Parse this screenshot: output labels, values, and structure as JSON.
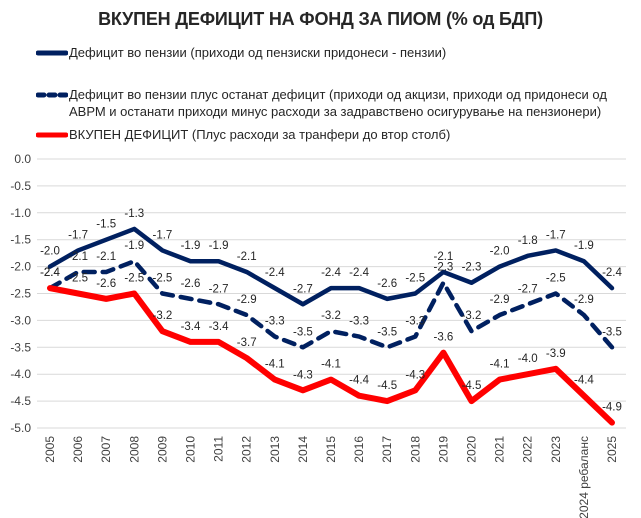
{
  "chart_data": {
    "type": "line",
    "title": "ВКУПЕН ДЕФИЦИТ НА ФОНД ЗА ПИОМ (% од БДП)",
    "xlabel": "",
    "ylabel": "",
    "ylim": [
      -5.0,
      0.0
    ],
    "yticks": [
      "0.0",
      "-0.5",
      "-1.0",
      "-1.5",
      "-2.0",
      "-2.5",
      "-3.0",
      "-3.5",
      "-4.0",
      "-4.5",
      "-5.0"
    ],
    "ytick_values": [
      0.0,
      -0.5,
      -1.0,
      -1.5,
      -2.0,
      -2.5,
      -3.0,
      -3.5,
      -4.0,
      -4.5,
      -5.0
    ],
    "grid": true,
    "legend_position": "top",
    "categories": [
      "2005",
      "2006",
      "2007",
      "2008",
      "2009",
      "2010",
      "2011",
      "2012",
      "2013",
      "2014",
      "2015",
      "2016",
      "2017",
      "2018",
      "2019",
      "2020",
      "2021",
      "2022",
      "2023",
      "2024 ребаланс",
      "2025"
    ],
    "series": [
      {
        "name": "Дефицит во пензии (приходи од пензиски придонеси -  пензии)",
        "color": "#002060",
        "style": "solid",
        "values": [
          -2.0,
          -1.7,
          -1.5,
          -1.3,
          -1.7,
          -1.9,
          -1.9,
          -2.1,
          -2.4,
          -2.7,
          -2.4,
          -2.4,
          -2.6,
          -2.5,
          -2.1,
          -2.3,
          -2.0,
          -1.8,
          -1.7,
          -1.9,
          -2.4
        ]
      },
      {
        "name": "Дефицит во пензии плус останат дефицит (приходи од акцизи, приходи од придонеси од АВРМ и останати приходи минус расходи за задравствено осигурување на пензионери)",
        "color": "#002060",
        "style": "dashed",
        "values": [
          -2.4,
          -2.1,
          -2.1,
          -1.9,
          -2.5,
          -2.6,
          -2.7,
          -2.9,
          -3.3,
          -3.5,
          -3.2,
          -3.3,
          -3.5,
          -3.3,
          -2.3,
          -3.2,
          -2.9,
          -2.7,
          -2.5,
          -2.9,
          -3.5
        ]
      },
      {
        "name": "ВКУПЕН ДЕФИЦИТ (Плус расходи за транфери до втор столб)",
        "color": "#ff0000",
        "style": "solid",
        "values": [
          -2.4,
          -2.5,
          -2.6,
          -2.5,
          -3.2,
          -3.4,
          -3.4,
          -3.7,
          -4.1,
          -4.3,
          -4.1,
          -4.4,
          -4.5,
          -4.3,
          -3.6,
          -4.5,
          -4.1,
          -4.0,
          -3.9,
          -4.4,
          -4.9
        ]
      }
    ]
  }
}
